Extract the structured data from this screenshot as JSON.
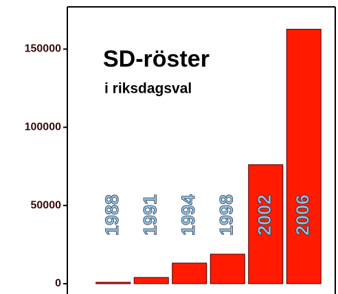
{
  "chart_data": {
    "type": "bar",
    "title": "SD-röster",
    "subtitle": "i riksdagsval",
    "categories": [
      "1988",
      "1991",
      "1994",
      "1998",
      "2002",
      "2006"
    ],
    "values": [
      900,
      4000,
      13200,
      18900,
      76100,
      162700
    ],
    "color": "#ff1a00",
    "label_color": "#8ec5e8",
    "ylim": [
      0,
      177000
    ],
    "yticks": [
      0,
      50000,
      100000,
      150000
    ]
  }
}
